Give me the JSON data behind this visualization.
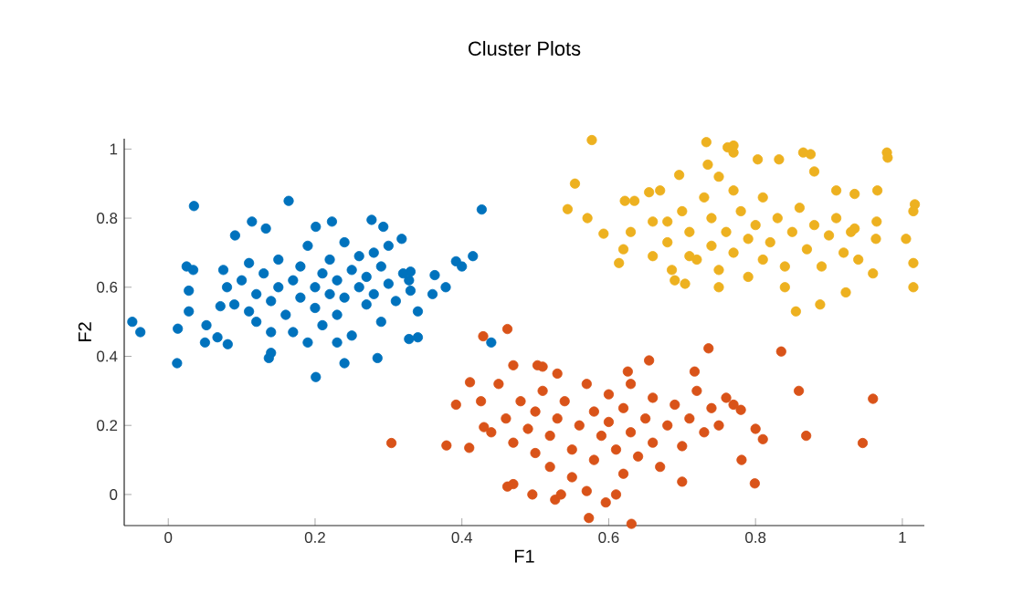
{
  "chart_data": {
    "type": "scatter",
    "title": "Cluster Plots",
    "xlabel": "F1",
    "ylabel": "F2",
    "xlim": [
      -0.06,
      1.03
    ],
    "ylim": [
      -0.09,
      1.03
    ],
    "xticks": [
      0,
      0.2,
      0.4,
      0.6,
      0.8,
      1
    ],
    "yticks": [
      0,
      0.2,
      0.4,
      0.6,
      0.8,
      1
    ],
    "marker": "circle",
    "series": [
      {
        "color": "#0072bd",
        "x": [
          -0.049,
          -0.038,
          0.012,
          0.013,
          0.035,
          0.025,
          0.034,
          0.028,
          0.028,
          0.052,
          0.05,
          0.067,
          0.081,
          0.071,
          0.075,
          0.091,
          0.114,
          0.133,
          0.164,
          0.201,
          0.223,
          0.201,
          0.24,
          0.285,
          0.137,
          0.14,
          0.277,
          0.293,
          0.318,
          0.328,
          0.33,
          0.34,
          0.328,
          0.34,
          0.363,
          0.378,
          0.392,
          0.4,
          0.415,
          0.427,
          0.44,
          0.36,
          0.08,
          0.09,
          0.1,
          0.11,
          0.12,
          0.12,
          0.13,
          0.14,
          0.15,
          0.15,
          0.16,
          0.17,
          0.17,
          0.18,
          0.18,
          0.19,
          0.2,
          0.2,
          0.21,
          0.21,
          0.22,
          0.22,
          0.23,
          0.23,
          0.24,
          0.24,
          0.25,
          0.25,
          0.26,
          0.26,
          0.27,
          0.27,
          0.28,
          0.28,
          0.29,
          0.29,
          0.3,
          0.3,
          0.31,
          0.32,
          0.33,
          0.19,
          0.14,
          0.11,
          0.23
        ],
        "values": [
          0.5,
          0.47,
          0.38,
          0.48,
          0.835,
          0.66,
          0.65,
          0.59,
          0.53,
          0.49,
          0.44,
          0.455,
          0.435,
          0.545,
          0.65,
          0.75,
          0.79,
          0.77,
          0.85,
          0.775,
          0.79,
          0.34,
          0.38,
          0.395,
          0.395,
          0.41,
          0.795,
          0.775,
          0.74,
          0.62,
          0.645,
          0.53,
          0.45,
          0.455,
          0.635,
          0.6,
          0.675,
          0.66,
          0.69,
          0.825,
          0.44,
          0.58,
          0.6,
          0.55,
          0.62,
          0.67,
          0.58,
          0.5,
          0.64,
          0.56,
          0.68,
          0.6,
          0.52,
          0.62,
          0.47,
          0.57,
          0.66,
          0.72,
          0.6,
          0.54,
          0.64,
          0.49,
          0.58,
          0.68,
          0.62,
          0.52,
          0.73,
          0.57,
          0.65,
          0.46,
          0.6,
          0.69,
          0.55,
          0.63,
          0.7,
          0.58,
          0.5,
          0.66,
          0.61,
          0.72,
          0.56,
          0.64,
          0.59,
          0.44,
          0.47,
          0.53,
          0.44
        ]
      },
      {
        "color": "#d95319",
        "x": [
          0.304,
          0.379,
          0.392,
          0.411,
          0.41,
          0.429,
          0.462,
          0.43,
          0.426,
          0.45,
          0.462,
          0.47,
          0.47,
          0.496,
          0.503,
          0.51,
          0.527,
          0.535,
          0.573,
          0.596,
          0.61,
          0.631,
          0.626,
          0.655,
          0.7,
          0.717,
          0.736,
          0.781,
          0.799,
          0.835,
          0.859,
          0.869,
          0.946,
          0.96,
          0.81,
          0.8,
          0.78,
          0.77,
          0.46,
          0.47,
          0.48,
          0.49,
          0.5,
          0.5,
          0.51,
          0.52,
          0.52,
          0.53,
          0.54,
          0.55,
          0.55,
          0.56,
          0.57,
          0.58,
          0.58,
          0.59,
          0.6,
          0.6,
          0.61,
          0.62,
          0.62,
          0.63,
          0.63,
          0.64,
          0.65,
          0.66,
          0.66,
          0.67,
          0.68,
          0.69,
          0.7,
          0.71,
          0.72,
          0.73,
          0.74,
          0.75,
          0.76,
          0.53,
          0.44,
          0.57
        ],
        "values": [
          0.149,
          0.142,
          0.26,
          0.325,
          0.135,
          0.458,
          0.479,
          0.195,
          0.27,
          0.32,
          0.023,
          0.03,
          0.374,
          0.0,
          0.374,
          0.37,
          -0.015,
          0.0,
          -0.068,
          -0.023,
          0.0,
          -0.085,
          0.356,
          0.388,
          0.037,
          0.356,
          0.423,
          0.1,
          0.032,
          0.414,
          0.3,
          0.17,
          0.149,
          0.277,
          0.16,
          0.19,
          0.245,
          0.26,
          0.22,
          0.15,
          0.27,
          0.19,
          0.12,
          0.24,
          0.3,
          0.17,
          0.08,
          0.22,
          0.27,
          0.13,
          0.05,
          0.2,
          0.32,
          0.24,
          0.1,
          0.17,
          0.29,
          0.21,
          0.13,
          0.06,
          0.25,
          0.18,
          0.32,
          0.11,
          0.22,
          0.15,
          0.28,
          0.08,
          0.2,
          0.26,
          0.14,
          0.22,
          0.3,
          0.18,
          0.25,
          0.2,
          0.28,
          0.35,
          0.18,
          0.01
        ]
      },
      {
        "color": "#edb120",
        "x": [
          0.577,
          0.554,
          0.544,
          0.571,
          0.593,
          0.614,
          0.62,
          0.622,
          0.635,
          0.63,
          0.655,
          0.66,
          0.67,
          0.68,
          0.686,
          0.696,
          0.704,
          0.71,
          0.733,
          0.735,
          0.75,
          0.762,
          0.77,
          0.77,
          0.803,
          0.832,
          0.84,
          0.855,
          0.865,
          0.875,
          0.88,
          0.888,
          0.923,
          0.91,
          0.935,
          0.935,
          0.96,
          0.964,
          0.965,
          0.966,
          0.979,
          0.98,
          1.005,
          1.017,
          1.015,
          1.015,
          1.015,
          0.68,
          0.7,
          0.71,
          0.72,
          0.73,
          0.74,
          0.74,
          0.75,
          0.76,
          0.77,
          0.77,
          0.78,
          0.79,
          0.79,
          0.8,
          0.81,
          0.81,
          0.82,
          0.83,
          0.84,
          0.85,
          0.86,
          0.87,
          0.88,
          0.89,
          0.9,
          0.91,
          0.92,
          0.93,
          0.94,
          0.75,
          0.69,
          0.66
        ],
        "values": [
          1.026,
          0.9,
          0.826,
          0.8,
          0.755,
          0.67,
          0.71,
          0.85,
          0.85,
          0.76,
          0.875,
          0.79,
          0.88,
          0.79,
          0.65,
          0.925,
          0.61,
          0.69,
          1.02,
          0.955,
          0.6,
          1.005,
          0.99,
          1.01,
          0.97,
          0.97,
          0.6,
          0.53,
          0.99,
          0.985,
          0.935,
          0.55,
          0.585,
          0.88,
          0.87,
          0.77,
          0.64,
          0.74,
          0.79,
          0.88,
          0.99,
          0.975,
          0.74,
          0.84,
          0.82,
          0.67,
          0.6,
          0.73,
          0.82,
          0.76,
          0.68,
          0.86,
          0.72,
          0.8,
          0.65,
          0.76,
          0.88,
          0.7,
          0.82,
          0.74,
          0.63,
          0.78,
          0.68,
          0.86,
          0.73,
          0.8,
          0.66,
          0.76,
          0.83,
          0.71,
          0.78,
          0.66,
          0.75,
          0.8,
          0.7,
          0.76,
          0.68,
          0.92,
          0.62,
          0.69
        ]
      }
    ]
  }
}
